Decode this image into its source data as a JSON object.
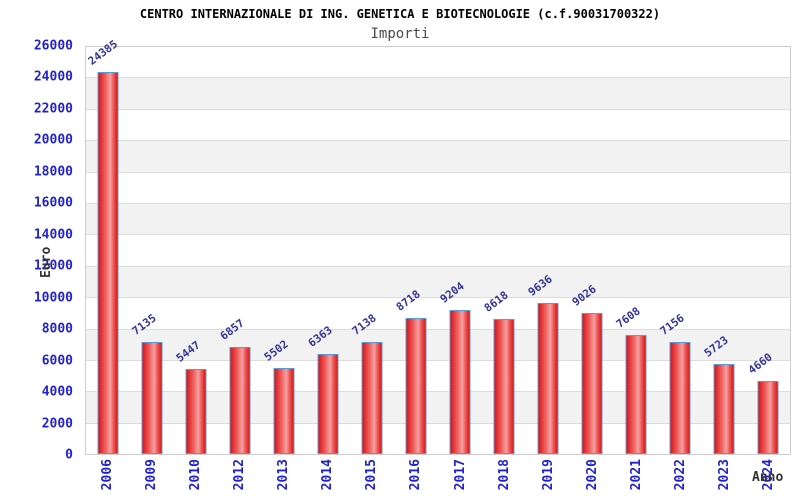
{
  "header": {
    "title": "CENTRO INTERNAZIONALE DI ING. GENETICA E BIOTECNOLOGIE (c.f.90031700322)",
    "subtitle": "Importi"
  },
  "chart_data": {
    "type": "bar",
    "title": "CENTRO INTERNAZIONALE DI ING. GENETICA E BIOTECNOLOGIE (c.f.90031700322)",
    "subtitle": "Importi",
    "xlabel": "Anno",
    "ylabel": "Euro",
    "categories": [
      "2006",
      "2009",
      "2010",
      "2012",
      "2013",
      "2014",
      "2015",
      "2016",
      "2017",
      "2018",
      "2019",
      "2020",
      "2021",
      "2022",
      "2023",
      "2024"
    ],
    "values": [
      24385,
      7135,
      5447,
      6857,
      5502,
      6363,
      7138,
      8718,
      9204,
      8618,
      9636,
      9026,
      7608,
      7156,
      5723,
      4660
    ],
    "ylim": [
      0,
      26000
    ],
    "ytick_step": 2000,
    "grid": true,
    "legend": "none",
    "band_fill": "alternating horizontal stripes",
    "colors": {
      "bar_dark": "#dc1414",
      "bar_light": "#f5a0a0",
      "bar_border": "#5b9bd5",
      "tick_label": "#2222cc",
      "value_label": "#333399",
      "band_gray": "#f2f2f2",
      "grid_line": "#dddddd",
      "axis_title": "#333333"
    }
  }
}
